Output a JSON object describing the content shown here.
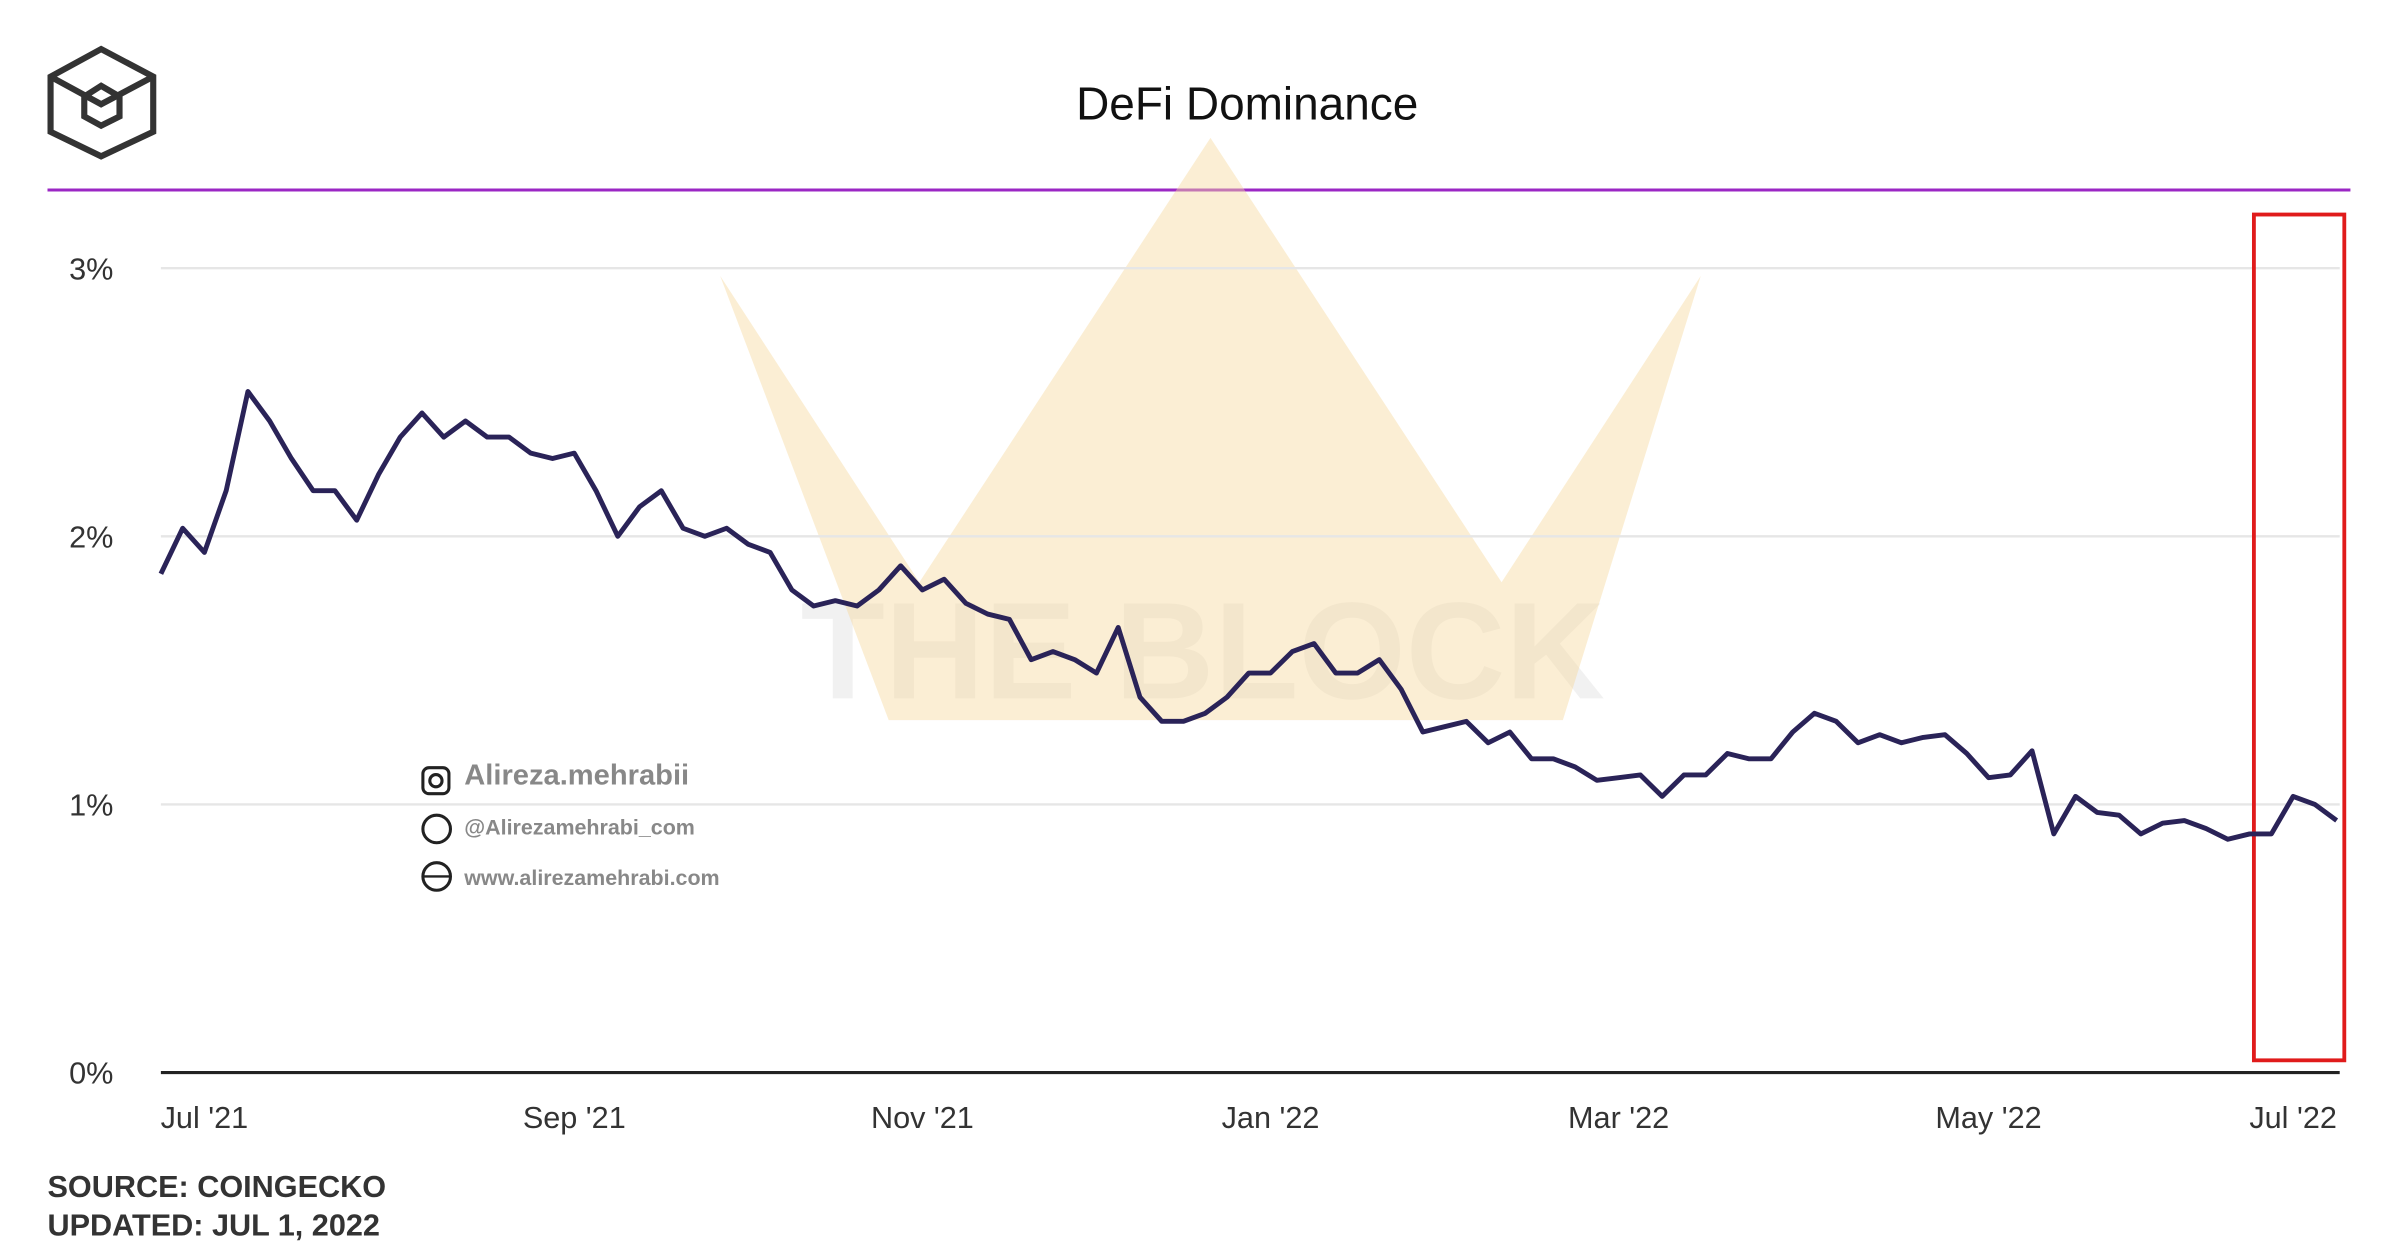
{
  "chart_data": {
    "type": "line",
    "title": "DeFi Dominance",
    "source": "SOURCE: COINGECKO",
    "updated": "UPDATED: JUL 1, 2022",
    "watermarks": [
      "Alireza.mehrabii",
      "@Alirezamehrabi_com",
      "www.alirezamehrabi.com",
      "THE BLOCK"
    ],
    "color": "#2a2358",
    "grid": true,
    "ylim": [
      0,
      3.2
    ],
    "yticks": [
      {
        "value": 0,
        "label": "0%"
      },
      {
        "value": 1,
        "label": "1%"
      },
      {
        "value": 2,
        "label": "2%"
      },
      {
        "value": 3,
        "label": "3%"
      }
    ],
    "categories": [
      null,
      null,
      "Jul '21",
      null,
      null,
      null,
      null,
      null,
      null,
      null,
      null,
      null,
      null,
      null,
      null,
      null,
      null,
      null,
      null,
      "Sep '21",
      null,
      null,
      null,
      null,
      null,
      null,
      null,
      null,
      null,
      null,
      null,
      null,
      null,
      null,
      null,
      "Nov '21",
      null,
      null,
      null,
      null,
      null,
      null,
      null,
      null,
      null,
      null,
      null,
      null,
      null,
      null,
      null,
      "Jan '22",
      null,
      null,
      null,
      null,
      null,
      null,
      null,
      null,
      null,
      null,
      null,
      null,
      null,
      null,
      null,
      "Mar '22",
      null,
      null,
      null,
      null,
      null,
      null,
      null,
      null,
      null,
      null,
      null,
      null,
      null,
      null,
      null,
      null,
      "May '22",
      null,
      null,
      null,
      null,
      null,
      null,
      null,
      null,
      null,
      null,
      null,
      null,
      null,
      "Jul '22",
      null,
      null
    ],
    "values": [
      1.86,
      2.03,
      1.94,
      2.17,
      2.54,
      2.43,
      2.29,
      2.17,
      2.17,
      2.06,
      2.23,
      2.37,
      2.46,
      2.37,
      2.43,
      2.37,
      2.37,
      2.31,
      2.29,
      2.31,
      2.17,
      2.0,
      2.11,
      2.17,
      2.03,
      2.0,
      2.03,
      1.97,
      1.94,
      1.8,
      1.74,
      1.76,
      1.74,
      1.8,
      1.89,
      1.8,
      1.84,
      1.75,
      1.71,
      1.69,
      1.54,
      1.57,
      1.54,
      1.49,
      1.66,
      1.4,
      1.31,
      1.31,
      1.34,
      1.4,
      1.49,
      1.49,
      1.57,
      1.6,
      1.49,
      1.49,
      1.54,
      1.43,
      1.27,
      1.29,
      1.31,
      1.23,
      1.27,
      1.17,
      1.17,
      1.14,
      1.09,
      1.1,
      1.11,
      1.03,
      1.11,
      1.11,
      1.19,
      1.17,
      1.17,
      1.27,
      1.34,
      1.31,
      1.23,
      1.26,
      1.23,
      1.25,
      1.26,
      1.19,
      1.1,
      1.11,
      1.2,
      0.89,
      1.03,
      0.97,
      0.96,
      0.89,
      0.93,
      0.94,
      0.91,
      0.87,
      0.89,
      0.89,
      1.03,
      1.0,
      0.94
    ]
  }
}
